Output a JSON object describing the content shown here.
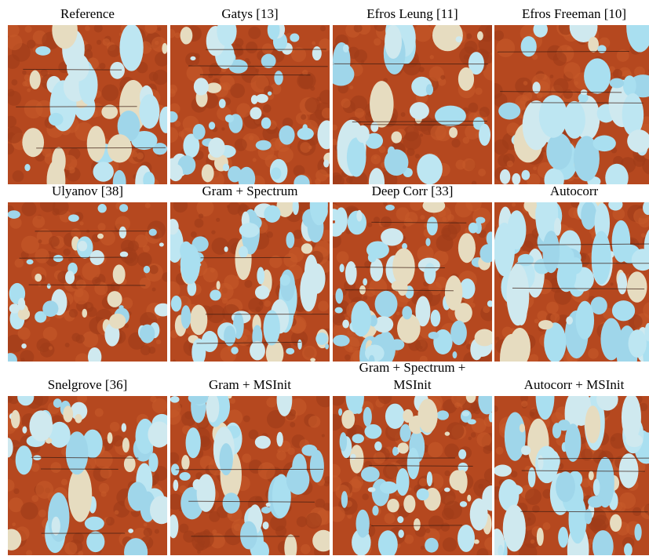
{
  "figure": {
    "panels": [
      {
        "label": "Reference"
      },
      {
        "label": "Gatys [13]"
      },
      {
        "label": "Efros Leung [11]"
      },
      {
        "label": "Efros Freeman [10]"
      },
      {
        "label": "Ulyanov [38]"
      },
      {
        "label": "Gram + Spectrum"
      },
      {
        "label": "Deep Corr [33]"
      },
      {
        "label": "Autocorr"
      },
      {
        "label": "Snelgrove [36]"
      },
      {
        "label": "Gram + MSInit"
      },
      {
        "label": "Gram + Spectrum + MSInit"
      },
      {
        "label": "Autocorr + MSInit"
      }
    ]
  }
}
